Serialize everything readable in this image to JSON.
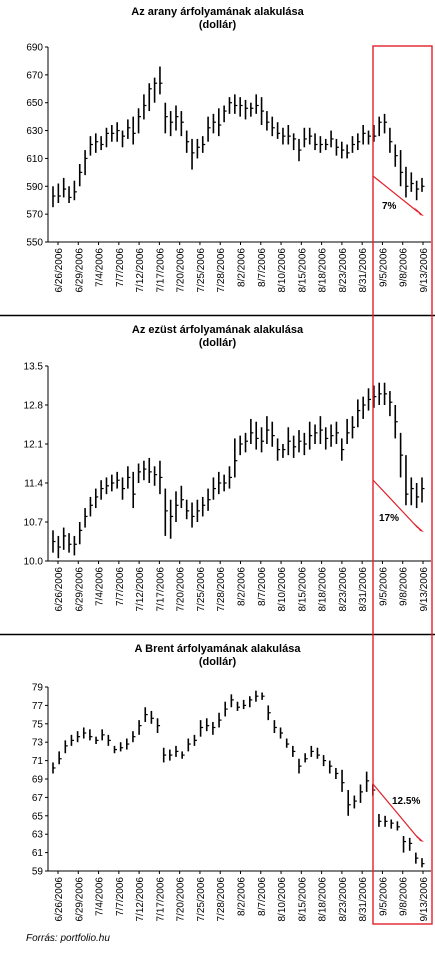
{
  "colors": {
    "bar": "#000000",
    "highlight": "#e0202a",
    "divider": "#000000",
    "axis": "#000000"
  },
  "source": "Forrás: portfolio.hu",
  "dates": [
    "6/26/2006",
    "6/29/2006",
    "7/4/2006",
    "7/7/2006",
    "7/12/2006",
    "7/17/2006",
    "7/20/2006",
    "7/25/2006",
    "7/28/2006",
    "8/2/2006",
    "8/7/2006",
    "8/10/2006",
    "8/15/2006",
    "8/18/2006",
    "8/23/2006",
    "8/31/2006",
    "9/5/2006",
    "9/8/2006",
    "9/13/2006"
  ],
  "chart_data": [
    {
      "type": "ohlc",
      "title": "Az arany árfolyamának alakulása",
      "subtitle": "(dollár)",
      "ylim": [
        550,
        690
      ],
      "yticks": [
        550,
        570,
        590,
        610,
        630,
        650,
        670,
        690
      ],
      "annotation": "7%",
      "bars": [
        [
          590,
          575,
          583
        ],
        [
          592,
          578,
          583
        ],
        [
          596,
          582,
          588
        ],
        [
          590,
          578,
          582
        ],
        [
          594,
          580,
          586
        ],
        [
          606,
          590,
          600
        ],
        [
          616,
          598,
          610
        ],
        [
          626,
          612,
          620
        ],
        [
          628,
          614,
          622
        ],
        [
          626,
          616,
          620
        ],
        [
          632,
          618,
          628
        ],
        [
          634,
          622,
          628
        ],
        [
          636,
          622,
          630
        ],
        [
          630,
          618,
          626
        ],
        [
          638,
          624,
          632
        ],
        [
          640,
          620,
          628
        ],
        [
          646,
          628,
          640
        ],
        [
          656,
          638,
          648
        ],
        [
          664,
          644,
          660
        ],
        [
          668,
          650,
          664
        ],
        [
          676,
          656,
          664
        ],
        [
          650,
          628,
          640
        ],
        [
          644,
          626,
          636
        ],
        [
          648,
          630,
          640
        ],
        [
          644,
          626,
          636
        ],
        [
          630,
          614,
          622
        ],
        [
          624,
          602,
          614
        ],
        [
          624,
          610,
          618
        ],
        [
          626,
          614,
          620
        ],
        [
          640,
          622,
          632
        ],
        [
          642,
          628,
          636
        ],
        [
          646,
          626,
          634
        ],
        [
          648,
          636,
          644
        ],
        [
          654,
          642,
          650
        ],
        [
          656,
          642,
          648
        ],
        [
          654,
          640,
          648
        ],
        [
          652,
          638,
          646
        ],
        [
          650,
          640,
          646
        ],
        [
          656,
          642,
          648
        ],
        [
          654,
          634,
          644
        ],
        [
          644,
          630,
          636
        ],
        [
          640,
          626,
          632
        ],
        [
          636,
          624,
          628
        ],
        [
          632,
          620,
          626
        ],
        [
          634,
          620,
          626
        ],
        [
          628,
          616,
          624
        ],
        [
          624,
          608,
          616
        ],
        [
          632,
          618,
          624
        ],
        [
          632,
          620,
          626
        ],
        [
          628,
          616,
          620
        ],
        [
          626,
          614,
          620
        ],
        [
          624,
          616,
          620
        ],
        [
          630,
          618,
          624
        ],
        [
          624,
          612,
          618
        ],
        [
          622,
          610,
          616
        ],
        [
          620,
          610,
          614
        ],
        [
          626,
          614,
          620
        ],
        [
          628,
          616,
          622
        ],
        [
          634,
          620,
          628
        ],
        [
          630,
          620,
          626
        ],
        [
          634,
          622,
          626
        ],
        [
          640,
          626,
          636
        ],
        [
          642,
          628,
          636
        ],
        [
          632,
          614,
          622
        ],
        [
          620,
          604,
          612
        ],
        [
          616,
          590,
          600
        ],
        [
          604,
          582,
          590
        ],
        [
          600,
          586,
          592
        ],
        [
          594,
          580,
          588
        ],
        [
          596,
          586,
          590
        ]
      ]
    },
    {
      "type": "ohlc",
      "title": "Az ezüst árfolyamának alakulása",
      "subtitle": "(dollár)",
      "ylim": [
        10,
        13.5
      ],
      "yticks": [
        10,
        10.7,
        11.4,
        12.1,
        12.8,
        13.5
      ],
      "annotation": "17%",
      "bars": [
        [
          10.55,
          10.15,
          10.35
        ],
        [
          10.45,
          10.05,
          10.25
        ],
        [
          10.6,
          10.2,
          10.45
        ],
        [
          10.5,
          10.15,
          10.3
        ],
        [
          10.45,
          10.1,
          10.3
        ],
        [
          10.7,
          10.3,
          10.55
        ],
        [
          10.95,
          10.6,
          10.8
        ],
        [
          11.15,
          10.8,
          11.0
        ],
        [
          11.3,
          10.95,
          11.15
        ],
        [
          11.45,
          11.1,
          11.3
        ],
        [
          11.5,
          11.2,
          11.35
        ],
        [
          11.55,
          11.25,
          11.4
        ],
        [
          11.6,
          11.3,
          11.45
        ],
        [
          11.5,
          11.1,
          11.3
        ],
        [
          11.7,
          11.3,
          11.5
        ],
        [
          11.6,
          10.95,
          11.2
        ],
        [
          11.75,
          11.4,
          11.6
        ],
        [
          11.8,
          11.45,
          11.65
        ],
        [
          11.85,
          11.4,
          11.6
        ],
        [
          11.7,
          11.35,
          11.55
        ],
        [
          11.8,
          11.2,
          11.5
        ],
        [
          11.3,
          10.45,
          10.9
        ],
        [
          11.1,
          10.4,
          10.8
        ],
        [
          11.25,
          10.7,
          11.0
        ],
        [
          11.35,
          10.95,
          11.1
        ],
        [
          11.1,
          10.75,
          10.9
        ],
        [
          11.05,
          10.6,
          10.8
        ],
        [
          11.1,
          10.7,
          10.9
        ],
        [
          11.15,
          10.8,
          11.0
        ],
        [
          11.3,
          10.9,
          11.1
        ],
        [
          11.5,
          11.1,
          11.3
        ],
        [
          11.6,
          11.2,
          11.4
        ],
        [
          11.55,
          11.25,
          11.4
        ],
        [
          11.7,
          11.3,
          11.5
        ],
        [
          12.2,
          11.5,
          11.8
        ],
        [
          12.25,
          11.9,
          12.1
        ],
        [
          12.3,
          11.95,
          12.15
        ],
        [
          12.55,
          12.1,
          12.3
        ],
        [
          12.5,
          12.0,
          12.2
        ],
        [
          12.4,
          11.95,
          12.15
        ],
        [
          12.6,
          12.1,
          12.35
        ],
        [
          12.5,
          12.05,
          12.25
        ],
        [
          12.2,
          11.8,
          12.0
        ],
        [
          12.1,
          11.85,
          12.0
        ],
        [
          12.4,
          11.9,
          12.15
        ],
        [
          12.25,
          11.85,
          12.05
        ],
        [
          12.35,
          11.95,
          12.15
        ],
        [
          12.3,
          11.9,
          12.1
        ],
        [
          12.5,
          12.0,
          12.25
        ],
        [
          12.45,
          12.1,
          12.3
        ],
        [
          12.6,
          12.1,
          12.35
        ],
        [
          12.4,
          12.0,
          12.2
        ],
        [
          12.45,
          12.05,
          12.25
        ],
        [
          12.5,
          12.1,
          12.3
        ],
        [
          12.2,
          11.8,
          12.0
        ],
        [
          12.55,
          12.1,
          12.3
        ],
        [
          12.6,
          12.2,
          12.4
        ],
        [
          12.9,
          12.4,
          12.7
        ],
        [
          12.95,
          12.55,
          12.8
        ],
        [
          13.1,
          12.7,
          12.9
        ],
        [
          13.15,
          12.75,
          12.95
        ],
        [
          13.2,
          12.8,
          13.0
        ],
        [
          13.2,
          12.8,
          13.0
        ],
        [
          13.05,
          12.6,
          12.85
        ],
        [
          12.8,
          12.2,
          12.5
        ],
        [
          12.3,
          11.5,
          11.9
        ],
        [
          11.9,
          11.0,
          11.2
        ],
        [
          11.5,
          11.0,
          11.3
        ],
        [
          11.4,
          10.95,
          11.15
        ],
        [
          11.5,
          11.05,
          11.3
        ]
      ]
    },
    {
      "type": "ohlc",
      "title": "A Brent árfolyamának alakulása",
      "subtitle": "(dollár)",
      "ylim": [
        59,
        79
      ],
      "yticks": [
        59,
        61,
        63,
        65,
        67,
        69,
        71,
        73,
        75,
        77,
        79
      ],
      "annotation": "12.5%",
      "bars": [
        [
          70.8,
          69.6,
          70.2
        ],
        [
          72.0,
          70.6,
          71.2
        ],
        [
          73.2,
          71.8,
          72.6
        ],
        [
          73.8,
          72.6,
          73.2
        ],
        [
          74.2,
          73.0,
          73.6
        ],
        [
          74.6,
          73.4,
          74.0
        ],
        [
          74.4,
          73.2,
          73.6
        ],
        [
          73.6,
          72.8,
          73.2
        ],
        [
          74.4,
          73.2,
          73.8
        ],
        [
          73.8,
          72.6,
          73.2
        ],
        [
          72.6,
          71.8,
          72.2
        ],
        [
          73.0,
          72.0,
          72.4
        ],
        [
          73.4,
          72.2,
          72.8
        ],
        [
          74.2,
          73.0,
          73.6
        ],
        [
          75.4,
          73.8,
          74.8
        ],
        [
          76.8,
          75.2,
          76.0
        ],
        [
          76.4,
          75.0,
          75.6
        ],
        [
          75.6,
          74.0,
          74.8
        ],
        [
          72.4,
          70.8,
          71.6
        ],
        [
          72.2,
          71.0,
          71.6
        ],
        [
          72.6,
          71.4,
          72.0
        ],
        [
          72.0,
          71.2,
          71.6
        ],
        [
          73.4,
          72.0,
          72.8
        ],
        [
          73.8,
          72.6,
          73.2
        ],
        [
          75.4,
          73.6,
          74.6
        ],
        [
          75.6,
          74.2,
          74.8
        ],
        [
          75.2,
          73.8,
          74.6
        ],
        [
          76.2,
          74.6,
          75.4
        ],
        [
          77.4,
          75.8,
          76.6
        ],
        [
          78.2,
          76.8,
          77.6
        ],
        [
          77.4,
          76.4,
          76.8
        ],
        [
          77.6,
          76.6,
          77.0
        ],
        [
          78.0,
          76.8,
          77.6
        ],
        [
          78.6,
          77.4,
          78.0
        ],
        [
          78.4,
          77.6,
          78.0
        ],
        [
          77.0,
          75.4,
          76.2
        ],
        [
          75.4,
          74.0,
          74.6
        ],
        [
          74.6,
          73.4,
          74.0
        ],
        [
          73.4,
          72.4,
          72.8
        ],
        [
          72.6,
          71.4,
          72.0
        ],
        [
          71.2,
          69.6,
          70.4
        ],
        [
          71.8,
          70.8,
          71.2
        ],
        [
          72.6,
          71.4,
          72.0
        ],
        [
          72.4,
          71.2,
          71.6
        ],
        [
          71.6,
          70.4,
          71.0
        ],
        [
          71.0,
          69.6,
          70.4
        ],
        [
          70.2,
          69.0,
          69.6
        ],
        [
          70.0,
          67.6,
          68.6
        ],
        [
          67.8,
          65.0,
          66.2
        ],
        [
          67.2,
          65.8,
          66.6
        ],
        [
          68.4,
          66.4,
          67.6
        ],
        [
          69.8,
          67.6,
          68.8
        ],
        [
          68.4,
          67.2,
          67.8
        ],
        [
          65.2,
          63.8,
          64.4
        ],
        [
          65.0,
          63.8,
          64.4
        ],
        [
          64.6,
          63.6,
          64.2
        ],
        [
          64.4,
          63.4,
          63.8
        ],
        [
          62.8,
          61.0,
          62.2
        ],
        [
          62.6,
          61.2,
          62.0
        ],
        [
          61.0,
          59.8,
          60.4
        ],
        [
          60.4,
          59.4,
          59.8
        ]
      ]
    }
  ]
}
